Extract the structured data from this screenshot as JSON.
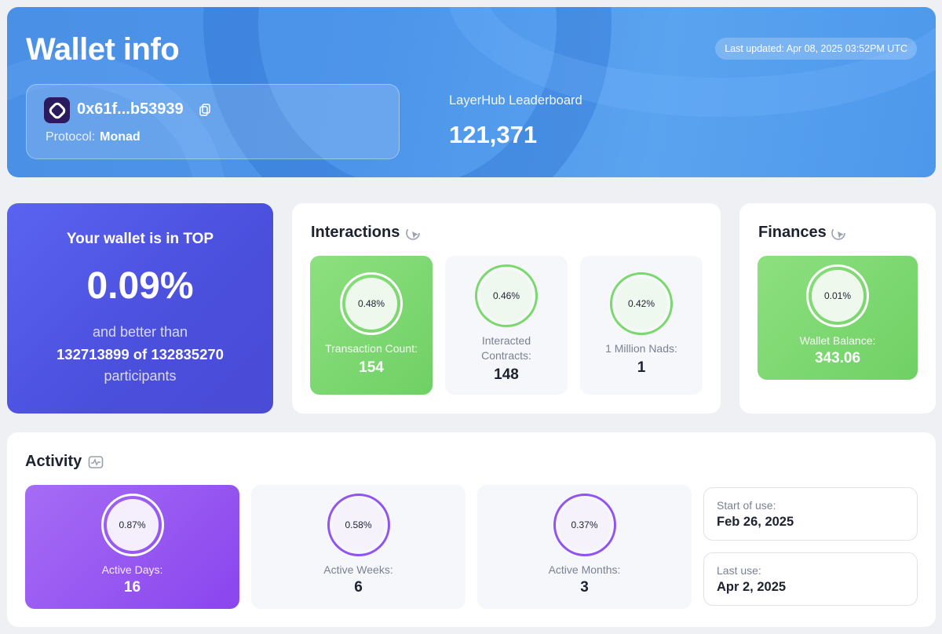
{
  "header": {
    "title": "Wallet info",
    "last_updated": "Last updated: Apr 08, 2025 03:52PM UTC",
    "address": "0x61f...b53939",
    "protocol_label": "Protocol:",
    "protocol_value": "Monad",
    "leaderboard_label": "LayerHub Leaderboard",
    "leaderboard_value": "121,371"
  },
  "top_rank": {
    "line1": "Your wallet is in TOP",
    "percent": "0.09%",
    "line3": "and better than",
    "line4": "132713899 of 132835270",
    "line5": "participants"
  },
  "interactions": {
    "title": "Interactions",
    "icon": "cursor-click-icon",
    "items": [
      {
        "pct": "0.48%",
        "label": "Transaction Count:",
        "value": "154"
      },
      {
        "pct": "0.46%",
        "label": "Interacted Contracts:",
        "value": "148"
      },
      {
        "pct": "0.42%",
        "label": "1 Million Nads:",
        "value": "1"
      }
    ]
  },
  "finances": {
    "title": "Finances",
    "icon": "cursor-click-icon",
    "items": [
      {
        "pct": "0.01%",
        "label": "Wallet Balance:",
        "value": "343.06"
      }
    ]
  },
  "activity": {
    "title": "Activity",
    "icon": "activity-chart-icon",
    "items": [
      {
        "pct": "0.87%",
        "label": "Active Days:",
        "value": "16"
      },
      {
        "pct": "0.58%",
        "label": "Active Weeks:",
        "value": "6"
      },
      {
        "pct": "0.37%",
        "label": "Active Months:",
        "value": "3"
      }
    ],
    "start_label": "Start of use:",
    "start_value": "Feb 26, 2025",
    "last_label": "Last use:",
    "last_value": "Apr 2, 2025"
  },
  "colors": {
    "header_blue": "#4d95ea",
    "top_card": "#4a4fdc",
    "green": "#7ad86d",
    "purple": "#8a45ee"
  }
}
